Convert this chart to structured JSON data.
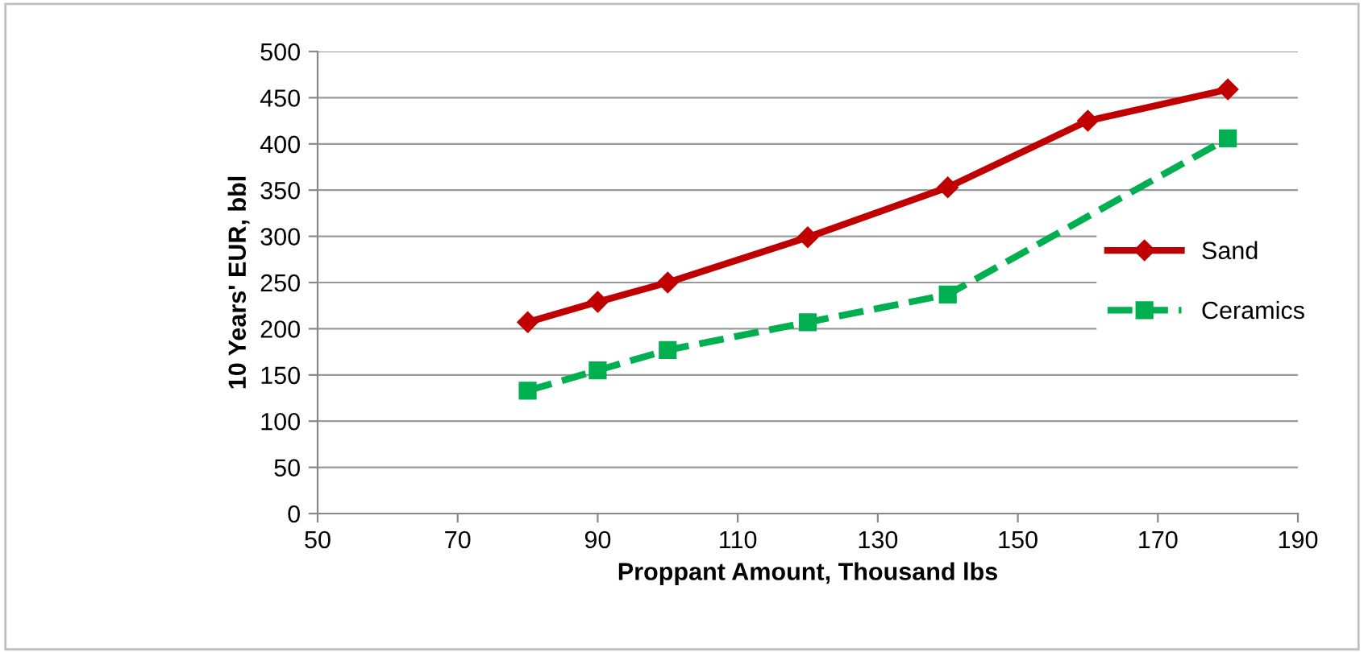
{
  "chart_data": {
    "type": "line",
    "xlabel": "Proppant Amount, Thousand lbs",
    "ylabel": "10 Years' EUR, bbl",
    "xlim": [
      50,
      190
    ],
    "xticks": [
      50,
      70,
      90,
      110,
      130,
      150,
      170,
      190
    ],
    "ylim": [
      0,
      500
    ],
    "yticks": [
      0,
      50,
      100,
      150,
      200,
      250,
      300,
      350,
      400,
      450,
      500
    ],
    "grid": "y",
    "legend": "right",
    "series": [
      {
        "name": "Sand",
        "color": "#c00000",
        "marker": "diamond",
        "line_style": "solid",
        "x": [
          80,
          90,
          100,
          120,
          140,
          160,
          180
        ],
        "values": [
          207,
          229,
          250,
          299,
          353,
          425,
          459
        ]
      },
      {
        "name": "Ceramics",
        "color": "#00b050",
        "marker": "square",
        "line_style": "dashed",
        "x": [
          80,
          90,
          100,
          120,
          140,
          160,
          180
        ],
        "values": [
          133,
          155,
          177,
          207,
          237,
          null,
          406
        ]
      }
    ]
  }
}
